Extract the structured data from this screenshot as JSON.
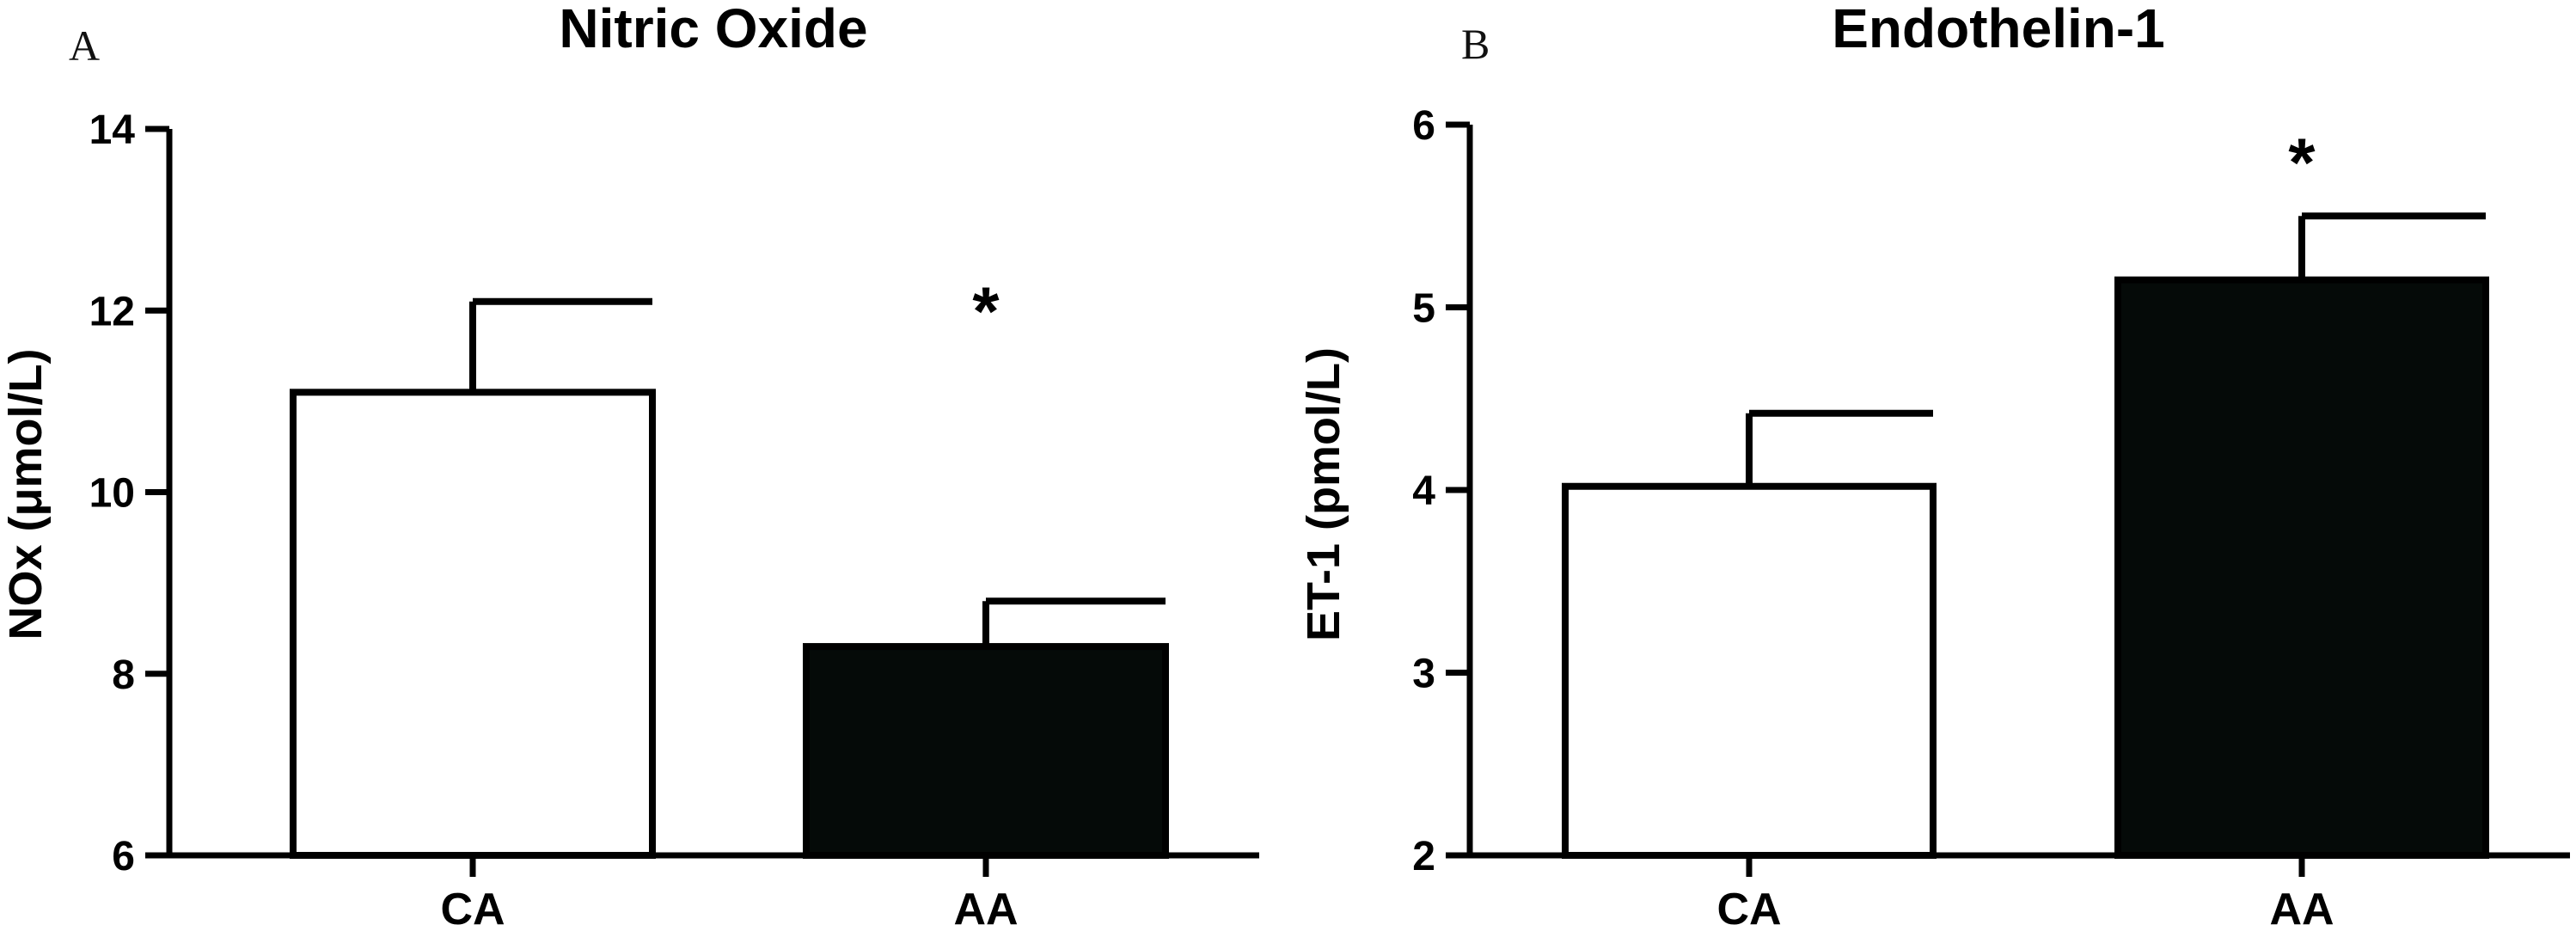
{
  "chart_data": [
    {
      "type": "bar",
      "panel": "A",
      "title": "Nitric Oxide",
      "ylabel": "NOx (μmol/L)",
      "xlabel": "",
      "categories": [
        "CA",
        "AA"
      ],
      "values": [
        11.1,
        8.3
      ],
      "error": [
        1.0,
        0.5
      ],
      "significance": [
        "",
        "*"
      ],
      "bar_colors": [
        "#ffffff",
        "#050a08"
      ],
      "ylim": [
        6,
        14
      ],
      "yticks": [
        6,
        8,
        10,
        12,
        14
      ],
      "ytick_labels": [
        "6",
        "8",
        "10",
        "12",
        "14"
      ],
      "grid": false
    },
    {
      "type": "bar",
      "panel": "B",
      "title": "Endothelin-1",
      "ylabel": "ET-1 (pmol/L)",
      "xlabel": "",
      "categories": [
        "CA",
        "AA"
      ],
      "values": [
        4.02,
        5.15
      ],
      "error": [
        0.4,
        0.35
      ],
      "significance": [
        "",
        "*"
      ],
      "bar_colors": [
        "#ffffff",
        "#050a08"
      ],
      "ylim": [
        2,
        6
      ],
      "yticks": [
        2,
        3,
        4,
        5,
        6
      ],
      "ytick_labels": [
        "2",
        "3",
        "4",
        "5",
        "6"
      ],
      "grid": false
    }
  ]
}
